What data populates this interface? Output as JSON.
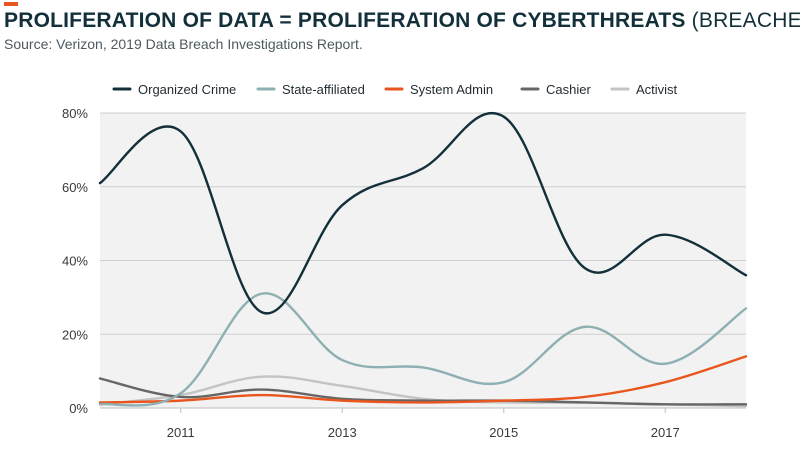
{
  "header": {
    "title_main": "PROLIFERATION OF DATA = PROLIFERATION OF CYBERTHREATS",
    "title_suffix": "(BREACHES)",
    "subtitle": "Source: Verizon, 2019 Data Breach Investigations Report.",
    "accent_color": "#e8561e"
  },
  "chart_data": {
    "type": "line",
    "title": "PROLIFERATION OF DATA = PROLIFERATION OF CYBERTHREATS (BREACHES)",
    "x": [
      2010,
      2011,
      2012,
      2013,
      2014,
      2015,
      2016,
      2017,
      2018
    ],
    "x_ticks": [
      "2011",
      "2013",
      "2015",
      "2017"
    ],
    "y_ticks": [
      "80%",
      "60%",
      "40%",
      "20%",
      "0%"
    ],
    "ylim": [
      0,
      80
    ],
    "grid": true,
    "legend_position": "top",
    "series": [
      {
        "name": "Organized Crime",
        "color": "#13303a",
        "values": [
          61,
          75,
          26,
          55,
          65,
          79,
          38,
          47,
          36
        ]
      },
      {
        "name": "State-affiliated",
        "color": "#8fb0b2",
        "values": [
          1,
          4,
          31,
          13,
          11,
          7,
          22,
          12,
          27
        ]
      },
      {
        "name": "System Admin",
        "color": "#e8561e",
        "values": [
          1.5,
          2,
          3.5,
          2,
          1.5,
          2,
          3,
          7,
          14
        ]
      },
      {
        "name": "Cashier",
        "color": "#666666",
        "values": [
          8,
          3,
          5,
          2.5,
          2,
          2,
          1.5,
          1,
          1
        ]
      },
      {
        "name": "Activist",
        "color": "#c4c4c4",
        "values": [
          1,
          3.5,
          8.5,
          6,
          2.5,
          1.5,
          1.5,
          1,
          0.5
        ]
      }
    ]
  }
}
